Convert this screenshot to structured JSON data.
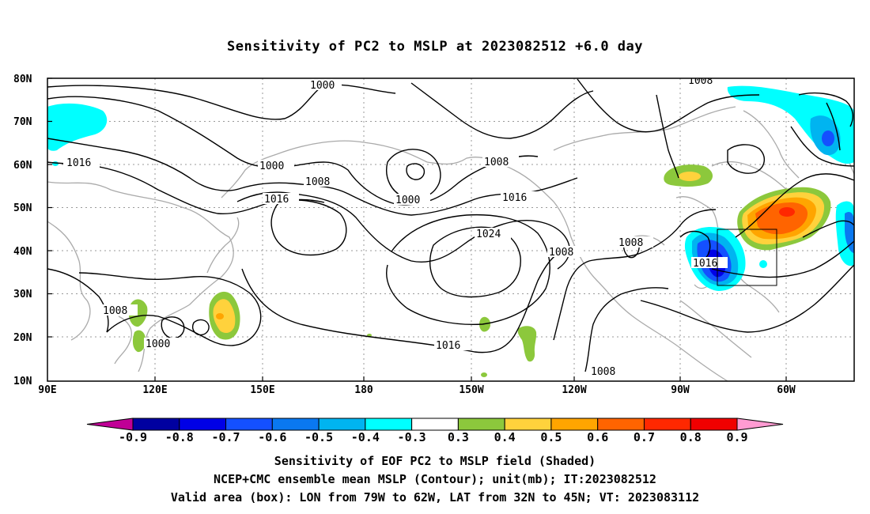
{
  "title": "Sensitivity of PC2 to MSLP at 2023082512 +6.0 day",
  "axes": {
    "lat_labels": [
      "80N",
      "70N",
      "60N",
      "50N",
      "40N",
      "30N",
      "20N",
      "10N"
    ],
    "lon_labels": [
      "90E",
      "120E",
      "150E",
      "180",
      "150W",
      "120W",
      "90W",
      "60W"
    ]
  },
  "colorbar": {
    "labels": [
      "-0.9",
      "-0.8",
      "-0.7",
      "-0.6",
      "-0.5",
      "-0.4",
      "-0.3",
      "0.3",
      "0.4",
      "0.5",
      "0.6",
      "0.7",
      "0.8",
      "0.9"
    ],
    "colors": [
      "#c00096",
      "#0000a0",
      "#0000e6",
      "#1450ff",
      "#0a78f0",
      "#00b4f0",
      "#00ffff",
      "#ffffff",
      "#8cc83c",
      "#ffd23c",
      "#ffa500",
      "#ff6400",
      "#ff2800",
      "#f00000",
      "#ff9bd2"
    ]
  },
  "contour_labels": {
    "c1000_top": "1000",
    "c1008_topright": "1008",
    "c1016_left": "1016",
    "c1000_mid": "1000",
    "c1008_mid": "1008",
    "c1016_mid": "1016",
    "c1000_pac": "1000",
    "c1008_pac": "1008",
    "c1016_pac": "1016",
    "c1024": "1024",
    "c1008_na": "1008",
    "c1008_na2": "1008",
    "c1016_na": "1016",
    "c1008_sw": "1008",
    "c1000_sw": "1000",
    "c1016_sub": "1016",
    "c1008_bottom": "1008"
  },
  "footer": {
    "line1": "Sensitivity of EOF PC2 to MSLP field (Shaded)",
    "line2": "NCEP+CMC ensemble mean MSLP (Contour); unit(mb); IT:2023082512",
    "line3": "Valid area (box): LON from 79W to 62W, LAT from 32N to 45N; VT: 2023083112"
  }
}
